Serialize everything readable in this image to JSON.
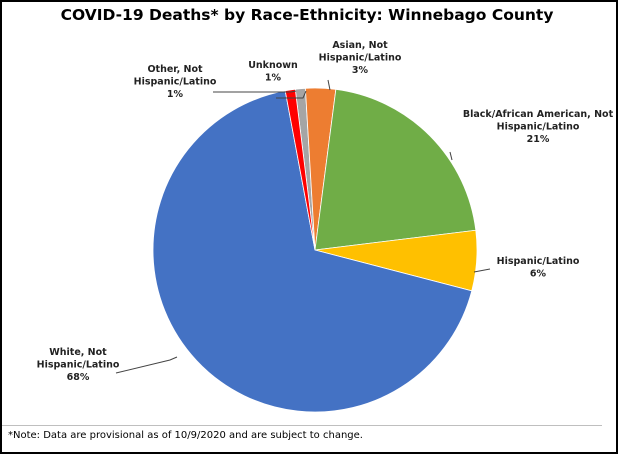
{
  "chart_data": {
    "type": "pie",
    "title": "COVID-19 Deaths* by Race-Ethnicity: Winnebago County",
    "note": "*Note: Data are provisional as of 10/9/2020 and are subject to change.",
    "legend": "none",
    "slices": [
      {
        "name_lines": [
          "Unknown"
        ],
        "value": 1,
        "value_label": "1%",
        "color": "#a5a5a5"
      },
      {
        "name_lines": [
          "Asian, Not",
          "Hispanic/Latino"
        ],
        "value": 3,
        "value_label": "3%",
        "color": "#ed7d31"
      },
      {
        "name_lines": [
          "Black/African American, Not",
          "Hispanic/Latino"
        ],
        "value": 21,
        "value_label": "21%",
        "color": "#70ad47"
      },
      {
        "name_lines": [
          "Hispanic/Latino"
        ],
        "value": 6,
        "value_label": "6%",
        "color": "#ffc000"
      },
      {
        "name_lines": [
          "White, Not",
          "Hispanic/Latino"
        ],
        "value": 68,
        "value_label": "68%",
        "color": "#4472c4"
      },
      {
        "name_lines": [
          "Other, Not",
          "Hispanic/Latino"
        ],
        "value": 1,
        "value_label": "1%",
        "color": "#ff0000"
      }
    ]
  }
}
